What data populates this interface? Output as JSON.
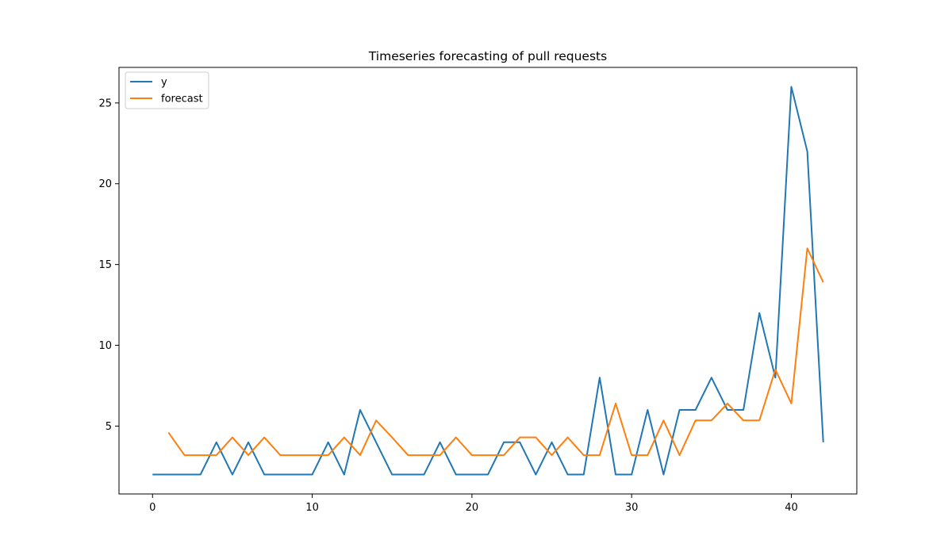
{
  "chart_data": {
    "type": "line",
    "title": "Timeseries forecasting of pull requests",
    "xlabel": "",
    "ylabel": "",
    "xlim": [
      -2.1,
      44.1
    ],
    "ylim": [
      0.8,
      27.2
    ],
    "xticks": [
      0,
      10,
      20,
      30,
      40
    ],
    "yticks": [
      5,
      10,
      15,
      20,
      25
    ],
    "grid": false,
    "legend_position": "top-left",
    "series": [
      {
        "name": "y",
        "color": "#1f77b4",
        "x": [
          0,
          1,
          2,
          3,
          4,
          5,
          6,
          7,
          8,
          9,
          10,
          11,
          12,
          13,
          14,
          15,
          16,
          17,
          18,
          19,
          20,
          21,
          22,
          23,
          24,
          25,
          26,
          27,
          28,
          29,
          30,
          31,
          32,
          33,
          34,
          35,
          36,
          37,
          38,
          39,
          40,
          41,
          42
        ],
        "values": [
          2,
          2,
          2,
          2,
          4,
          2,
          4,
          2,
          2,
          2,
          2,
          4,
          2,
          6,
          4,
          2,
          2,
          2,
          4,
          2,
          2,
          2,
          4,
          4,
          2,
          4,
          2,
          2,
          8,
          2,
          2,
          6,
          2,
          6,
          6,
          8,
          6,
          6,
          12,
          8,
          26,
          22,
          4
        ]
      },
      {
        "name": "forecast",
        "color": "#ff7f0e",
        "x": [
          1,
          2,
          3,
          4,
          5,
          6,
          7,
          8,
          9,
          10,
          11,
          12,
          13,
          14,
          15,
          16,
          17,
          18,
          19,
          20,
          21,
          22,
          23,
          24,
          25,
          26,
          27,
          28,
          29,
          30,
          31,
          32,
          33,
          34,
          35,
          36,
          37,
          38,
          39,
          40,
          41,
          42
        ],
        "values": [
          4.6,
          3.2,
          3.2,
          3.2,
          4.3,
          3.2,
          4.3,
          3.2,
          3.2,
          3.2,
          3.2,
          4.3,
          3.2,
          5.35,
          4.3,
          3.2,
          3.2,
          3.2,
          4.3,
          3.2,
          3.2,
          3.2,
          4.3,
          4.3,
          3.2,
          4.3,
          3.2,
          3.2,
          6.4,
          3.2,
          3.2,
          5.35,
          3.2,
          5.35,
          5.35,
          6.4,
          5.35,
          5.35,
          8.5,
          6.4,
          16.0,
          13.9
        ]
      }
    ]
  }
}
